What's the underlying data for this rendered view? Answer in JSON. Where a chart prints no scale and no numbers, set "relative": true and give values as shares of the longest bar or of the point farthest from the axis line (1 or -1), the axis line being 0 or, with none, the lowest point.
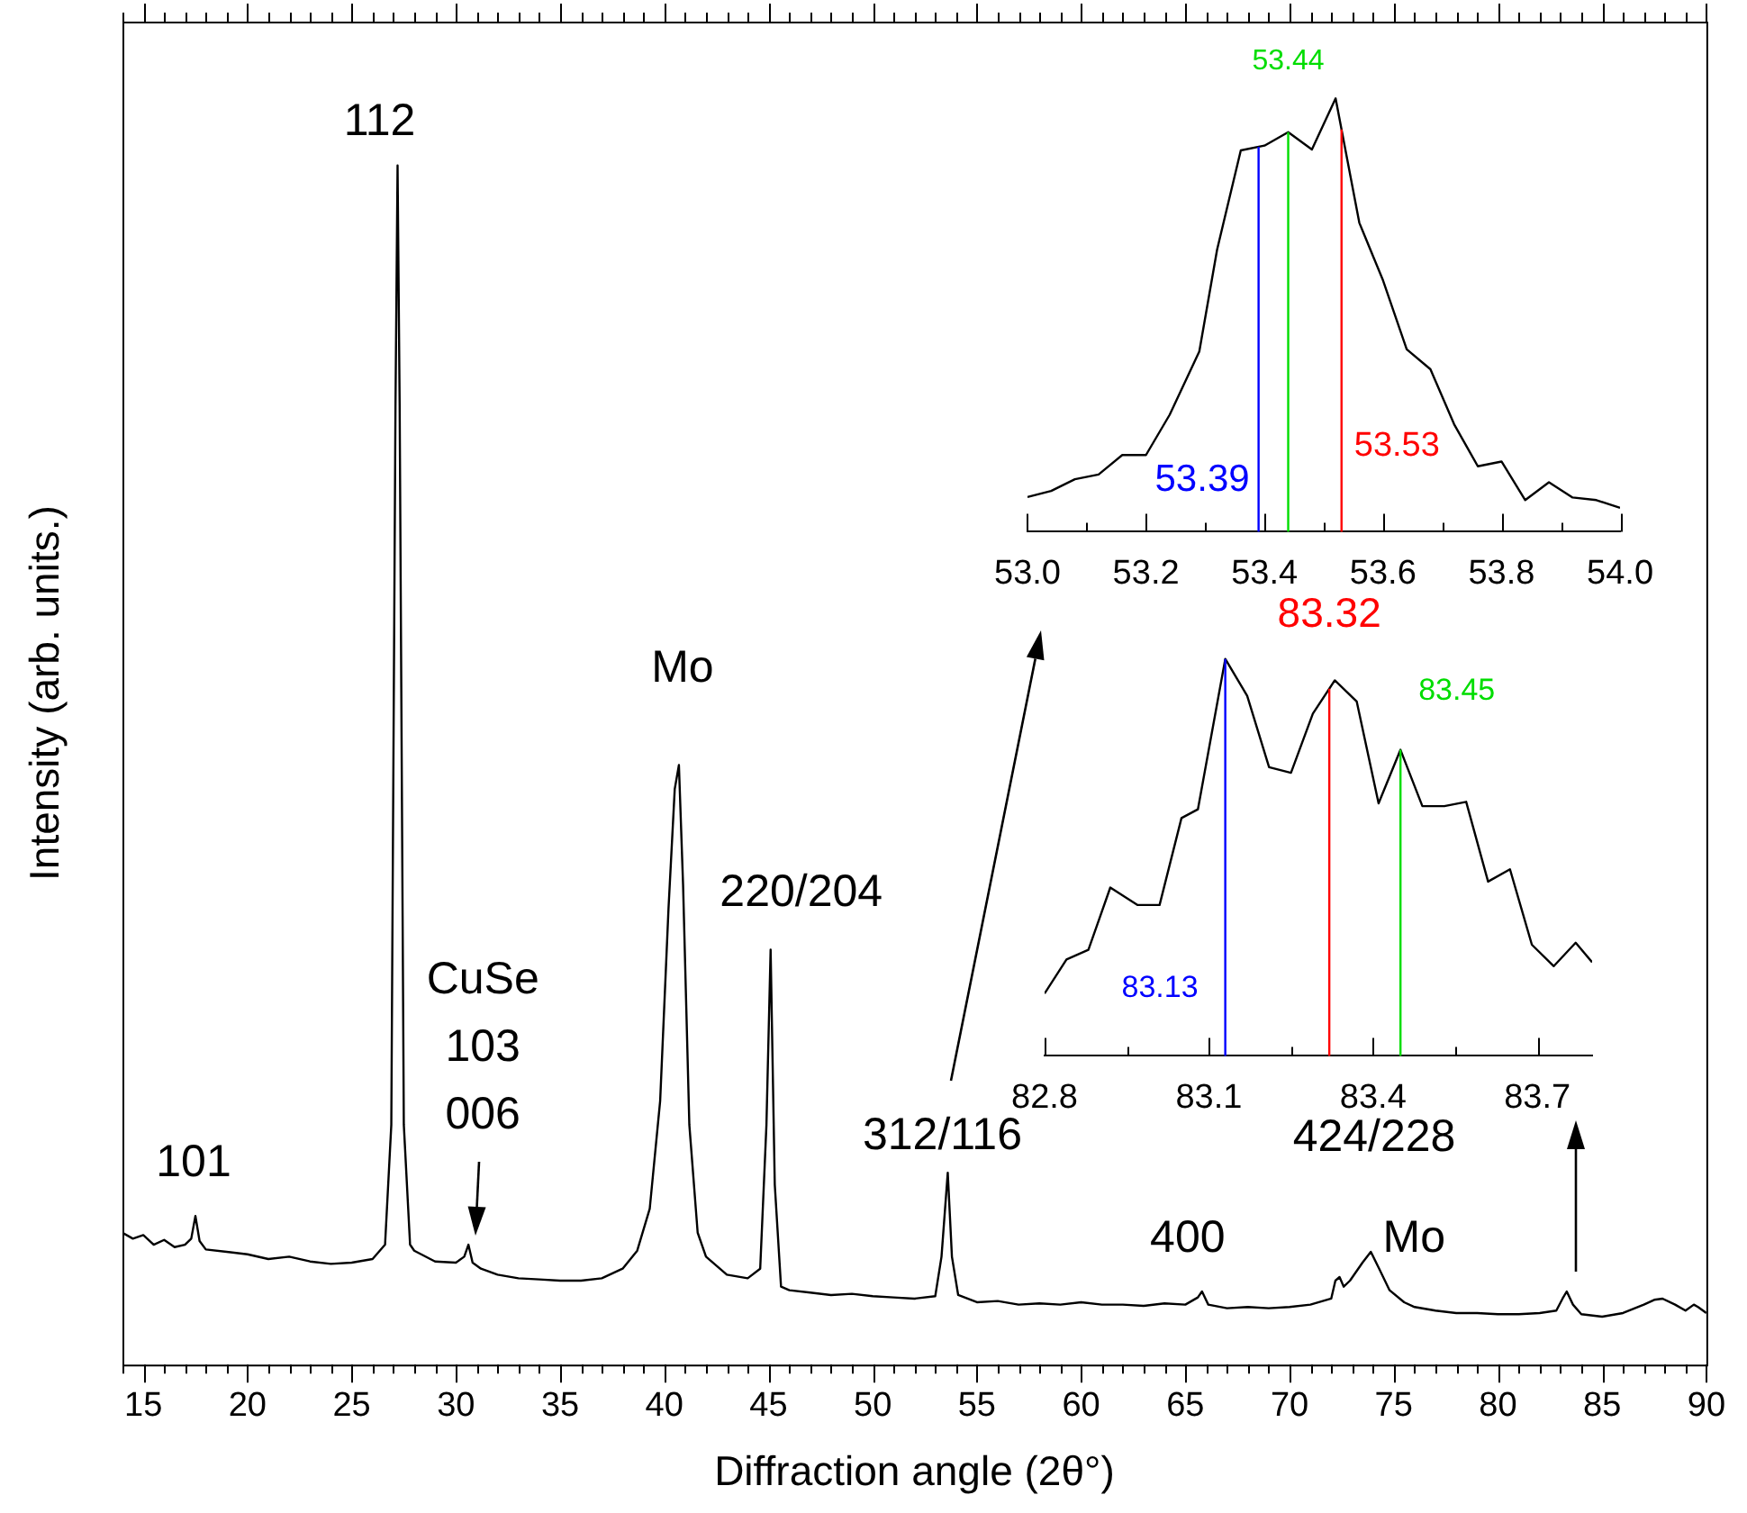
{
  "chart_data": [
    {
      "type": "line",
      "relative": true,
      "xlabel": "Diffraction angle (2θ°)",
      "ylabel": "Intensity (arb. units.)",
      "xlim": [
        14,
        90
      ],
      "xticks": [
        {
          "value": 14,
          "label": null
        },
        15,
        {
          "value": 16,
          "label": null
        },
        {
          "value": 17,
          "label": null
        },
        {
          "value": 18,
          "label": null
        },
        {
          "value": 19,
          "label": null
        },
        20,
        {
          "value": 21,
          "label": null
        },
        {
          "value": 22,
          "label": null
        },
        {
          "value": 23,
          "label": null
        },
        {
          "value": 24,
          "label": null
        },
        25,
        {
          "value": 26,
          "label": null
        },
        {
          "value": 27,
          "label": null
        },
        {
          "value": 28,
          "label": null
        },
        {
          "value": 29,
          "label": null
        },
        30,
        {
          "value": 31,
          "label": null
        },
        {
          "value": 32,
          "label": null
        },
        {
          "value": 33,
          "label": null
        },
        {
          "value": 34,
          "label": null
        },
        35,
        {
          "value": 36,
          "label": null
        },
        {
          "value": 37,
          "label": null
        },
        {
          "value": 38,
          "label": null
        },
        {
          "value": 39,
          "label": null
        },
        40,
        {
          "value": 41,
          "label": null
        },
        {
          "value": 42,
          "label": null
        },
        {
          "value": 43,
          "label": null
        },
        {
          "value": 44,
          "label": null
        },
        45,
        {
          "value": 46,
          "label": null
        },
        {
          "value": 47,
          "label": null
        },
        {
          "value": 48,
          "label": null
        },
        {
          "value": 49,
          "label": null
        },
        50,
        {
          "value": 51,
          "label": null
        },
        {
          "value": 52,
          "label": null
        },
        {
          "value": 53,
          "label": null
        },
        {
          "value": 54,
          "label": null
        },
        55,
        {
          "value": 56,
          "label": null
        },
        {
          "value": 57,
          "label": null
        },
        {
          "value": 58,
          "label": null
        },
        {
          "value": 59,
          "label": null
        },
        60,
        {
          "value": 61,
          "label": null
        },
        {
          "value": 62,
          "label": null
        },
        {
          "value": 63,
          "label": null
        },
        {
          "value": 64,
          "label": null
        },
        65,
        {
          "value": 66,
          "label": null
        },
        {
          "value": 67,
          "label": null
        },
        {
          "value": 68,
          "label": null
        },
        {
          "value": 69,
          "label": null
        },
        70,
        {
          "value": 71,
          "label": null
        },
        {
          "value": 72,
          "label": null
        },
        {
          "value": 73,
          "label": null
        },
        {
          "value": 74,
          "label": null
        },
        75,
        {
          "value": 76,
          "label": null
        },
        {
          "value": 77,
          "label": null
        },
        {
          "value": 78,
          "label": null
        },
        {
          "value": 79,
          "label": null
        },
        80,
        {
          "value": 81,
          "label": null
        },
        {
          "value": 82,
          "label": null
        },
        {
          "value": 83,
          "label": null
        },
        {
          "value": 84,
          "label": null
        },
        85,
        {
          "value": 86,
          "label": null
        },
        {
          "value": 87,
          "label": null
        },
        {
          "value": 88,
          "label": null
        },
        {
          "value": 89,
          "label": null
        },
        90
      ],
      "x": [
        14,
        14.5,
        15,
        15.5,
        16,
        16.5,
        17,
        17.3,
        17.5,
        17.7,
        18,
        19,
        20,
        21,
        22,
        23,
        24,
        25,
        26,
        26.6,
        26.9,
        27.1,
        27.2,
        27.3,
        27.5,
        27.8,
        28,
        29,
        30,
        30.4,
        30.6,
        30.8,
        31.2,
        32,
        33,
        34,
        35,
        36,
        37,
        38,
        38.7,
        39.3,
        39.8,
        40.2,
        40.5,
        40.7,
        40.9,
        41.2,
        41.6,
        42,
        43,
        44,
        44.6,
        44.9,
        45.1,
        45.3,
        45.6,
        46,
        47,
        48,
        49,
        50,
        51,
        52,
        53,
        53.3,
        53.6,
        53.8,
        54.1,
        55,
        56,
        57,
        58,
        59,
        60,
        61,
        62,
        63,
        64,
        65,
        65.6,
        65.8,
        66.1,
        67,
        68,
        69,
        70,
        71,
        72,
        72.2,
        72.4,
        72.6,
        72.9,
        73.5,
        73.9,
        74.3,
        74.8,
        75.5,
        76,
        77,
        78,
        79,
        80,
        81,
        82,
        82.8,
        83.1,
        83.3,
        83.6,
        84,
        85,
        86,
        87,
        87.5,
        87.9,
        88.5,
        89,
        89.4,
        89.6,
        90
      ],
      "values": [
        0.11,
        0.105,
        0.108,
        0.1,
        0.104,
        0.098,
        0.1,
        0.105,
        0.124,
        0.103,
        0.096,
        0.094,
        0.092,
        0.088,
        0.09,
        0.086,
        0.084,
        0.085,
        0.088,
        0.1,
        0.2,
        0.8,
        1.0,
        0.8,
        0.2,
        0.1,
        0.095,
        0.086,
        0.085,
        0.09,
        0.1,
        0.085,
        0.08,
        0.075,
        0.072,
        0.071,
        0.07,
        0.07,
        0.072,
        0.08,
        0.095,
        0.13,
        0.22,
        0.38,
        0.48,
        0.5,
        0.4,
        0.2,
        0.11,
        0.09,
        0.075,
        0.072,
        0.08,
        0.2,
        0.346,
        0.15,
        0.065,
        0.062,
        0.06,
        0.058,
        0.059,
        0.057,
        0.056,
        0.055,
        0.057,
        0.09,
        0.16,
        0.09,
        0.058,
        0.052,
        0.053,
        0.05,
        0.051,
        0.05,
        0.052,
        0.05,
        0.05,
        0.049,
        0.051,
        0.05,
        0.056,
        0.061,
        0.05,
        0.047,
        0.048,
        0.047,
        0.048,
        0.05,
        0.055,
        0.07,
        0.073,
        0.065,
        0.07,
        0.085,
        0.094,
        0.08,
        0.062,
        0.052,
        0.048,
        0.045,
        0.043,
        0.043,
        0.042,
        0.042,
        0.043,
        0.045,
        0.055,
        0.061,
        0.05,
        0.042,
        0.04,
        0.043,
        0.05,
        0.054,
        0.055,
        0.05,
        0.045,
        0.05,
        0.048,
        0.043
      ],
      "color": "#000000",
      "annotations": [
        {
          "text": "101",
          "x": 17.5,
          "y": 0.124
        },
        {
          "text": "112",
          "x": 27.2,
          "y": 1.0
        },
        {
          "text": "CuSe\n103\n006",
          "x": 30.6,
          "y": 0.1
        },
        {
          "text": "Mo",
          "x": 40.7,
          "y": 0.5
        },
        {
          "text": "220/204",
          "x": 45.1,
          "y": 0.346
        },
        {
          "text": "312/116",
          "x": 53.6,
          "y": 0.16
        },
        {
          "text": "400",
          "x": 65.8,
          "y": 0.061
        },
        {
          "text": "Mo",
          "x": 73.9,
          "y": 0.094
        },
        "424/228"
      ]
    },
    {
      "type": "line",
      "relative": true,
      "xlim": [
        53,
        54
      ],
      "xticks": [
        {
          "value": 53,
          "label": "53.0"
        },
        {
          "value": 53.1,
          "label": null
        },
        {
          "value": 53.2,
          "label": "53.2"
        },
        {
          "value": 53.3,
          "label": null
        },
        {
          "value": 53.4,
          "label": "53.4"
        },
        {
          "value": 53.5,
          "label": null
        },
        {
          "value": 53.6,
          "label": "53.6"
        },
        {
          "value": 53.7,
          "label": null
        },
        {
          "value": 53.8,
          "label": "53.8"
        },
        {
          "value": 53.9,
          "label": null
        },
        {
          "value": 54,
          "label": "54.0"
        }
      ],
      "x": [
        53.0,
        53.04,
        53.08,
        53.12,
        53.16,
        53.2,
        53.24,
        53.29,
        53.32,
        53.36,
        53.4,
        53.44,
        53.48,
        53.52,
        53.56,
        53.6,
        53.64,
        53.68,
        53.72,
        53.76,
        53.8,
        53.84,
        53.88,
        53.92,
        53.96,
        54.0
      ],
      "values": [
        0.08,
        0.094,
        0.121,
        0.132,
        0.177,
        0.177,
        0.27,
        0.416,
        0.651,
        0.88,
        0.891,
        0.922,
        0.882,
        1.0,
        0.713,
        0.58,
        0.421,
        0.375,
        0.248,
        0.151,
        0.162,
        0.073,
        0.114,
        0.079,
        0.073,
        0.055
      ],
      "color": "#000000",
      "ref_lines": [
        {
          "axis": "x",
          "value": 53.39,
          "label": "53.39",
          "color": "#0000ff"
        },
        {
          "axis": "x",
          "value": 53.44,
          "label": "53.44",
          "color": "#00dd00"
        },
        {
          "axis": "x",
          "value": 53.53,
          "label": "53.53",
          "color": "#ff0000"
        }
      ]
    },
    {
      "type": "line",
      "relative": true,
      "xlim": [
        82.8,
        83.8
      ],
      "xticks": [
        82.8,
        {
          "value": 82.95,
          "label": null
        },
        83.1,
        {
          "value": 83.25,
          "label": null
        },
        83.4,
        {
          "value": 83.55,
          "label": null
        },
        83.7
      ],
      "x": [
        82.8,
        82.84,
        82.88,
        82.92,
        82.97,
        83.01,
        83.05,
        83.08,
        83.13,
        83.17,
        83.21,
        83.25,
        83.29,
        83.33,
        83.37,
        83.41,
        83.45,
        83.49,
        83.53,
        83.57,
        83.61,
        83.65,
        83.69,
        83.73,
        83.77,
        83.8
      ],
      "values": [
        0.157,
        0.243,
        0.267,
        0.424,
        0.38,
        0.38,
        0.599,
        0.621,
        1.0,
        0.907,
        0.727,
        0.713,
        0.862,
        0.946,
        0.893,
        0.636,
        0.771,
        0.629,
        0.629,
        0.64,
        0.439,
        0.47,
        0.28,
        0.226,
        0.285,
        0.236
      ],
      "color": "#000000",
      "ref_lines": [
        {
          "axis": "x",
          "value": 83.13,
          "label": "83.13",
          "color": "#0000ff"
        },
        {
          "axis": "x",
          "value": 83.32,
          "label": "83.32",
          "color": "#ff0000"
        },
        {
          "axis": "x",
          "value": 83.45,
          "label": "83.45",
          "color": "#00dd00"
        }
      ]
    }
  ]
}
